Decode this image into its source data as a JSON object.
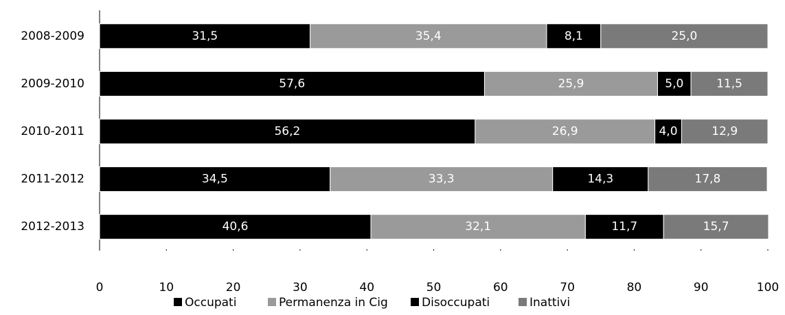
{
  "chart_data": {
    "type": "stacked-bar-horizontal",
    "categories": [
      "2008-2009",
      "2009-2010",
      "2010-2011",
      "2011-2012",
      "2012-2013"
    ],
    "series": [
      {
        "name": "Occupati",
        "color": "#000000",
        "values": [
          31.5,
          57.6,
          56.2,
          34.5,
          40.6
        ],
        "value_labels": [
          "31,5",
          "57,6",
          "56,2",
          "34,5",
          "40,6"
        ]
      },
      {
        "name": "Permanenza in Cig",
        "color": "#9a9a9a",
        "values": [
          35.4,
          25.9,
          26.9,
          33.3,
          32.1
        ],
        "value_labels": [
          "35,4",
          "25,9",
          "26,9",
          "33,3",
          "32,1"
        ]
      },
      {
        "name": "Disoccupati",
        "color": "#000000",
        "values": [
          8.1,
          5.0,
          4.0,
          14.3,
          11.7
        ],
        "value_labels": [
          "8,1",
          "5,0",
          "4,0",
          "14,3",
          "11,7"
        ]
      },
      {
        "name": "Inattivi",
        "color": "#7a7a7a",
        "values": [
          25.0,
          11.5,
          12.9,
          17.8,
          15.7
        ],
        "value_labels": [
          "25,0",
          "11,5",
          "12,9",
          "17,8",
          "15,7"
        ]
      }
    ],
    "xlim": [
      0,
      100
    ],
    "xticks": [
      0,
      10,
      20,
      30,
      40,
      50,
      60,
      70,
      80,
      90,
      100
    ]
  }
}
